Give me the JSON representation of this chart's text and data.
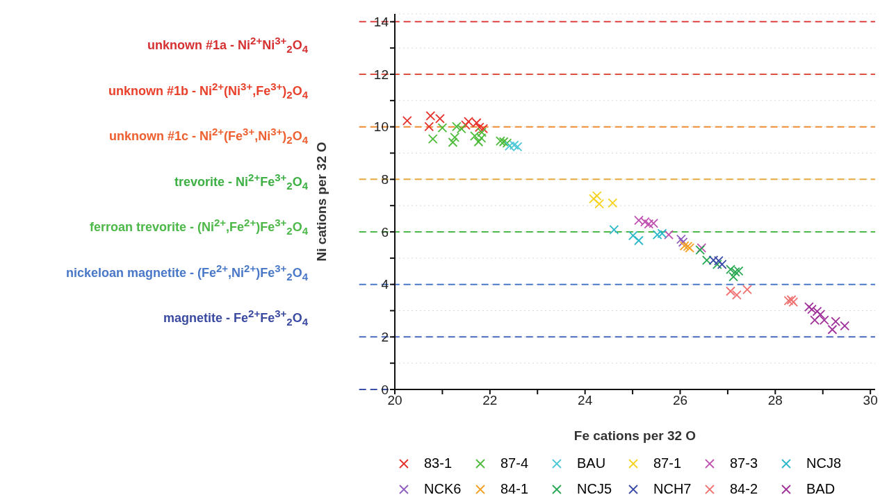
{
  "chart_data": {
    "type": "scatter",
    "xlabel": "Fe cations per 32 O",
    "ylabel": "Ni cations per 32 O",
    "xlim": [
      20,
      30.1
    ],
    "ylim": [
      0,
      14.3
    ],
    "xticks": [
      20,
      {
        "value": 21,
        "label": null
      },
      22,
      {
        "value": 23,
        "label": null
      },
      24,
      {
        "value": 25,
        "label": null
      },
      26,
      {
        "value": 27,
        "label": null
      },
      28,
      {
        "value": 29,
        "label": null
      },
      30
    ],
    "yticks": [
      0,
      {
        "value": 1,
        "label": null
      },
      2,
      {
        "value": 3,
        "label": null
      },
      4,
      {
        "value": 5,
        "label": null
      },
      6,
      {
        "value": 7,
        "label": null
      },
      8,
      {
        "value": 9,
        "label": null
      },
      10,
      {
        "value": 11,
        "label": null
      },
      12,
      {
        "value": 13,
        "label": null
      },
      14
    ],
    "grid": "y",
    "legend": "bottom",
    "marker": "cross",
    "annotations": [
      "unknown #1a - Ni$^{2+}$Ni$^{3+}$$_{2}$O$_{4}$",
      "unknown #1b - Ni$^{2+}$(Ni$^{3+}$,Fe$^{3+}$)$_{2}$O$_{4}$",
      "unknown #1c - Ni$^{2+}$(Fe$^{3+}$,Ni$^{3+}$)$_{2}$O$_{4}$",
      "trevorite - Ni$^{2+}$Fe$^{3+}$$_{2}$O$_{4}$",
      "ferroan trevorite - (Ni$^{2+}$,Fe$^{2+}$)Fe$^{3+}$$_{2}$O$_{4}$",
      "nickeloan magnetite - (Fe$^{2+}$,Ni$^{2+}$)Fe$^{3+}$$_{2}$O$_{4}$",
      "magnetite - Fe$^{2+}$Fe$^{3+}$$_{2}$O$_{4}$"
    ],
    "ref_lines": [
      {
        "axis": "y",
        "value": 14,
        "color": "#e04040",
        "line_style": "dashed"
      },
      {
        "axis": "y",
        "value": 12,
        "color": "#e05040",
        "line_style": "dashed"
      },
      {
        "axis": "y",
        "value": 10,
        "color": "#ef8a30",
        "line_style": "dashed"
      },
      {
        "axis": "y",
        "value": 8,
        "color": "#e8a840",
        "line_style": "dashed"
      },
      {
        "axis": "y",
        "value": 6,
        "color": "#4cb848",
        "line_style": "dashed"
      },
      {
        "axis": "y",
        "value": 4,
        "color": "#4a78c8",
        "line_style": "dashed"
      },
      {
        "axis": "y",
        "value": 2,
        "color": "#4a68c0",
        "line_style": "dashed"
      },
      {
        "axis": "y",
        "value": 0,
        "color": "#3a50a8",
        "line_style": "dashed"
      }
    ],
    "series": [
      {
        "name": "83-1",
        "color": "#e8302a",
        "x": [
          20.26,
          20.75,
          20.72,
          20.95,
          21.49,
          21.55,
          21.72,
          21.78,
          21.86
        ],
        "values": [
          10.23,
          10.42,
          10.01,
          10.31,
          10.07,
          10.2,
          10.15,
          9.98,
          9.93
        ]
      },
      {
        "name": "87-4",
        "color": "#4dbb3a",
        "x": [
          20.8,
          21.0,
          21.22,
          21.26,
          21.3,
          21.4,
          21.68,
          21.76,
          21.82,
          21.83,
          22.22,
          22.29,
          22.36
        ],
        "values": [
          9.54,
          9.96,
          9.41,
          9.6,
          10.01,
          9.93,
          9.65,
          9.43,
          9.57,
          9.79,
          9.46,
          9.43,
          9.38
        ]
      },
      {
        "name": "BAU",
        "color": "#4dc8d8",
        "x": [
          22.41,
          22.51,
          22.58
        ],
        "values": [
          9.27,
          9.3,
          9.24
        ]
      },
      {
        "name": "87-1",
        "color": "#f5d21e",
        "x": [
          24.18,
          24.25,
          24.3,
          24.58
        ],
        "values": [
          7.26,
          7.37,
          7.07,
          7.1
        ]
      },
      {
        "name": "87-3",
        "color": "#c050b0",
        "x": [
          25.13,
          25.26,
          25.34,
          25.44,
          25.76,
          26.45
        ],
        "values": [
          6.44,
          6.38,
          6.3,
          6.33,
          5.89,
          5.39
        ]
      },
      {
        "name": "NCJ8",
        "color": "#2ab8c8",
        "x": [
          24.61,
          25.01,
          25.13,
          25.52,
          25.62
        ],
        "values": [
          6.08,
          5.86,
          5.67,
          5.89,
          5.94
        ]
      },
      {
        "name": "NCK6",
        "color": "#8e5cc0",
        "x": [
          26.02,
          26.06
        ],
        "values": [
          5.72,
          5.61
        ]
      },
      {
        "name": "84-1",
        "color": "#f5a020",
        "x": [
          26.09,
          26.16,
          26.2
        ],
        "values": [
          5.47,
          5.45,
          5.39
        ]
      },
      {
        "name": "NCJ5",
        "color": "#28a850",
        "x": [
          26.42,
          26.56,
          26.78,
          27.06,
          27.16,
          27.23,
          27.12
        ],
        "values": [
          5.31,
          4.92,
          4.76,
          4.57,
          4.48,
          4.51,
          4.29
        ]
      },
      {
        "name": "NCH7",
        "color": "#3a4aa8",
        "x": [
          26.7,
          26.81,
          26.88
        ],
        "values": [
          4.92,
          4.9,
          4.76
        ]
      },
      {
        "name": "84-2",
        "color": "#f07070",
        "x": [
          27.06,
          27.19,
          27.41,
          28.28,
          28.34,
          28.38
        ],
        "values": [
          3.74,
          3.6,
          3.8,
          3.38,
          3.41,
          3.33
        ]
      },
      {
        "name": "BAD",
        "color": "#a0309a",
        "x": [
          28.71,
          28.77,
          28.83,
          28.88,
          28.95,
          29.03,
          29.2,
          29.27,
          29.46
        ],
        "values": [
          3.14,
          3.05,
          2.64,
          2.97,
          2.86,
          2.64,
          2.28,
          2.59,
          2.42
        ]
      }
    ]
  }
}
